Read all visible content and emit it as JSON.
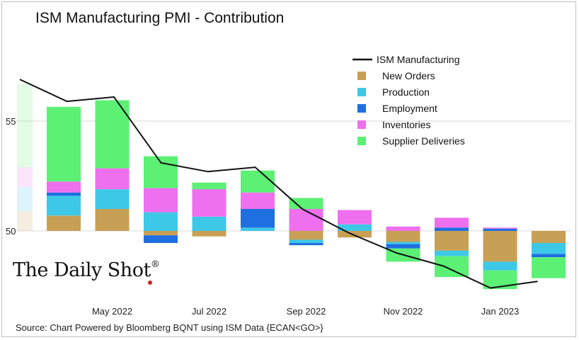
{
  "page": {
    "title": "ISM Manufacturing PMI - Contribution",
    "source": "Source: Chart Powered by Bloomberg BQNT using ISM Data   {ECAN<GO>}",
    "logo_text": "The Daily Shot",
    "logo_mark": "®"
  },
  "colors": {
    "new_orders": "#c8a055",
    "production": "#3ec8e8",
    "employment": "#1e6fe0",
    "inventories": "#ee70ee",
    "supplier_deliveries": "#5cf075",
    "line": "#111111",
    "grid": "#d9d9d9",
    "accent_dot": "#d42020"
  },
  "chart_data": {
    "type": "bar",
    "subtype": "stacked-contribution-with-line",
    "title": "ISM Manufacturing PMI - Contribution",
    "baseline": 50,
    "ylim": [
      47.5,
      57.5
    ],
    "yticks": [
      50,
      55
    ],
    "categories": [
      "Apr 2022",
      "May 2022",
      "Jun 2022",
      "Jul 2022",
      "Aug 2022",
      "Sep 2022",
      "Oct 2022",
      "Nov 2022",
      "Dec 2022",
      "Jan 2023",
      "Feb 2023"
    ],
    "xtick_labels": [
      {
        "label": "May 2022",
        "category": "May 2022"
      },
      {
        "label": "Jul 2022",
        "category": "Jul 2022"
      },
      {
        "label": "Sep 2022",
        "category": "Sep 2022"
      },
      {
        "label": "Nov 2022",
        "category": "Nov 2022"
      },
      {
        "label": "Jan 2023",
        "category": "Jan 2023"
      }
    ],
    "series": [
      {
        "name": "New Orders",
        "key": "new_orders",
        "values": [
          0.7,
          1.0,
          -0.2,
          -0.25,
          0.0,
          -0.4,
          -0.3,
          -0.5,
          -0.9,
          -1.4,
          -0.55
        ]
      },
      {
        "name": "Production",
        "key": "production",
        "values": [
          0.9,
          0.9,
          0.85,
          0.65,
          0.15,
          -0.15,
          0.3,
          -0.1,
          -0.25,
          -0.4,
          -0.5
        ]
      },
      {
        "name": "Employment",
        "key": "employment",
        "values": [
          0.15,
          0.0,
          -0.35,
          0.0,
          0.85,
          -0.1,
          0.0,
          -0.2,
          0.15,
          0.1,
          -0.15
        ]
      },
      {
        "name": "Inventories",
        "key": "inventories",
        "values": [
          0.5,
          0.95,
          1.1,
          1.25,
          0.75,
          1.0,
          0.65,
          0.2,
          0.45,
          0.05,
          0.0
        ]
      },
      {
        "name": "Supplier Deliveries",
        "key": "supplier_deliveries",
        "values": [
          3.4,
          3.1,
          1.45,
          0.3,
          1.0,
          0.5,
          0.0,
          -0.6,
          -0.95,
          -0.85,
          -0.95
        ]
      }
    ],
    "line": {
      "name": "ISM Manufacturing",
      "x": [
        "Mar 2022",
        "Apr 2022",
        "May 2022",
        "Jun 2022",
        "Jul 2022",
        "Aug 2022",
        "Sep 2022",
        "Oct 2022",
        "Nov 2022",
        "Dec 2022",
        "Jan 2023",
        "Feb 2023"
      ],
      "values": [
        56.9,
        55.9,
        56.1,
        53.1,
        52.7,
        52.9,
        51.0,
        49.9,
        49.0,
        48.4,
        47.4,
        47.7
      ]
    },
    "legend_position": "top-right",
    "legend": [
      "ISM Manufacturing",
      "New Orders",
      "Production",
      "Employment",
      "Inventories",
      "Supplier Deliveries"
    ],
    "grid": true
  }
}
